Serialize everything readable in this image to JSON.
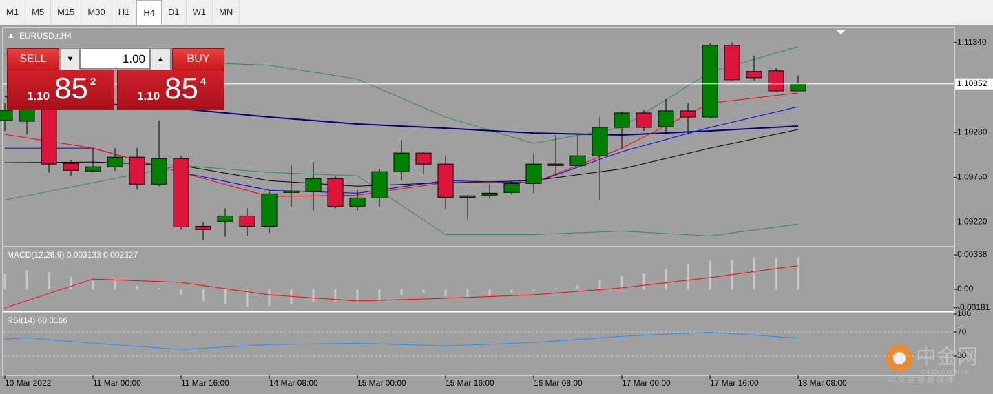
{
  "toolbar": {
    "timeframes": [
      "M1",
      "M5",
      "M15",
      "M30",
      "H1",
      "H4",
      "D1",
      "W1",
      "MN"
    ],
    "selected": "H4"
  },
  "trade_panel": {
    "sell": "SELL",
    "buy": "BUY",
    "volume": "1.00",
    "sell_price": {
      "prefix": "1.10",
      "big": "85",
      "sup": "2"
    },
    "buy_price": {
      "prefix": "1.10",
      "big": "85",
      "sup": "4"
    }
  },
  "watermark": {
    "name": "中金网",
    "domain": "CNGOLD.COM.CN",
    "slogan": "中 文 财 经 新 媒 体"
  },
  "chart_data": [
    {
      "type": "candlestick",
      "title": "EURUSD.r,H4",
      "categories": [
        "10 Mar 2022",
        null,
        null,
        null,
        "11 Mar 00:00",
        null,
        null,
        null,
        "11 Mar 16:00",
        null,
        null,
        null,
        "14 Mar 08:00",
        null,
        null,
        null,
        "15 Mar 00:00",
        null,
        null,
        null,
        "15 Mar 16:00",
        null,
        null,
        null,
        "16 Mar 08:00",
        null,
        null,
        null,
        "17 Mar 00:00",
        null,
        null,
        null,
        "17 Mar 16:00",
        null,
        null,
        null,
        "18 Mar 08:00"
      ],
      "open": [
        1.10419,
        1.10411,
        1.10582,
        1.09914,
        1.09824,
        1.09873,
        1.09987,
        1.09669,
        1.09971,
        1.09172,
        1.09229,
        1.09294,
        1.09172,
        1.09571,
        1.0958,
        1.09734,
        1.09408,
        1.09506,
        1.09816,
        1.10036,
        1.09906,
        1.09514,
        1.09539,
        1.09571,
        1.09677,
        1.09906,
        1.09889,
        1.10003,
        1.10338,
        1.10509,
        1.10346,
        1.10533,
        1.1046,
        1.11307,
        1.10998,
        1.11006,
        1.10769
      ],
      "high": [
        1.10623,
        1.10623,
        1.10623,
        1.09954,
        1.10093,
        1.10093,
        1.10093,
        1.10419,
        1.10003,
        1.09221,
        1.09384,
        1.09384,
        1.09596,
        1.09889,
        1.0993,
        1.09759,
        1.09596,
        1.09849,
        1.10191,
        1.10052,
        1.10003,
        1.09547,
        1.09669,
        1.0971,
        1.10036,
        1.10248,
        1.10248,
        1.1046,
        1.10525,
        1.10541,
        1.10672,
        1.10623,
        1.11332,
        1.1134,
        1.11185,
        1.11038,
        1.10949
      ],
      "low": [
        1.10297,
        1.10256,
        1.09808,
        1.09767,
        1.09808,
        1.09824,
        1.09604,
        1.09645,
        1.09131,
        1.09009,
        1.0905,
        1.09058,
        1.09091,
        1.094,
        1.0936,
        1.09384,
        1.0936,
        1.094,
        1.0971,
        1.09791,
        1.09376,
        1.09254,
        1.09498,
        1.09547,
        1.09563,
        1.09783,
        1.09865,
        1.09482,
        1.10093,
        1.10297,
        1.10256,
        1.10256,
        1.10443,
        1.10892,
        1.10892,
        1.10753,
        1.10769
      ],
      "close": [
        1.10541,
        1.10558,
        1.09906,
        1.09832,
        1.09873,
        1.09987,
        1.09669,
        1.09971,
        1.09164,
        1.09131,
        1.09294,
        1.09172,
        1.09555,
        1.09588,
        1.09734,
        1.09408,
        1.09506,
        1.09816,
        1.10036,
        1.09906,
        1.09514,
        1.09531,
        1.09563,
        1.09677,
        1.09906,
        1.09889,
        1.10003,
        1.10338,
        1.10509,
        1.10338,
        1.10533,
        1.1046,
        1.11307,
        1.109,
        1.10924,
        1.10769,
        1.10852
      ],
      "up_color": "#008000",
      "down_color": "#dc143c",
      "current_price": {
        "value": 1.10852,
        "label": "1.10852"
      },
      "ylim": [
        1.0894,
        1.115
      ],
      "yticks": [
        {
          "value": 1.1134,
          "label": "1.11340"
        },
        {
          "value": 1.1028,
          "label": "1.10280"
        },
        {
          "value": 1.0975,
          "label": "1.09750"
        },
        {
          "value": 1.0922,
          "label": "1.09220"
        }
      ],
      "lines": [
        {
          "color": "#2e8b57",
          "width": 1,
          "x": [
            0,
            4,
            8,
            12,
            16,
            20,
            24,
            28,
            32,
            36
          ],
          "values": [
            1.11193,
            1.11153,
            1.11112,
            1.11071,
            1.10908,
            1.1046,
            1.1015,
            1.10338,
            1.1099,
            1.11291
          ]
        },
        {
          "color": "#2e8b57",
          "width": 1,
          "x": [
            0,
            4,
            8,
            12,
            16,
            20,
            24,
            28,
            32,
            36
          ],
          "values": [
            1.09482,
            1.09686,
            1.09889,
            1.09808,
            1.09767,
            1.09074,
            1.09074,
            1.09115,
            1.09058,
            1.09197
          ]
        },
        {
          "color": "#000080",
          "width": 2,
          "x": [
            0,
            4,
            8,
            12,
            16,
            20,
            24,
            28,
            32,
            36
          ],
          "values": [
            1.10704,
            1.10623,
            1.10558,
            1.1046,
            1.10378,
            1.10329,
            1.10272,
            1.10248,
            1.10297,
            1.10354
          ]
        },
        {
          "color": "#000000",
          "width": 1,
          "x": [
            0,
            4,
            8,
            12,
            16,
            20,
            24,
            28,
            32,
            36
          ],
          "values": [
            1.09922,
            1.0993,
            1.09889,
            1.0971,
            1.09645,
            1.09686,
            1.0971,
            1.09849,
            1.10093,
            1.10313
          ]
        },
        {
          "color": "#0000ff",
          "width": 1,
          "x": [
            0,
            4,
            8,
            12,
            16,
            20,
            24,
            28,
            32,
            36
          ],
          "values": [
            1.10093,
            1.10093,
            1.09808,
            1.09596,
            1.09563,
            1.0971,
            1.09686,
            1.10052,
            1.10338,
            1.10582
          ]
        },
        {
          "color": "#ff0000",
          "width": 1,
          "x": [
            0,
            4,
            8,
            12,
            16,
            20,
            24,
            28,
            32,
            36
          ],
          "values": [
            1.10256,
            1.10093,
            1.09808,
            1.09523,
            1.09539,
            1.09686,
            1.09686,
            1.10093,
            1.10623,
            1.10745
          ]
        }
      ]
    },
    {
      "type": "macd",
      "title": "MACD(12,26,9) 0.003133 0.002327",
      "color": "#c8c8c8",
      "values": [
        0.00149,
        0.00189,
        0.00169,
        0.00122,
        0.00081,
        0.00101,
        0.00034,
        0.00014,
        -0.00054,
        -0.00115,
        -0.00142,
        -0.00169,
        -0.00162,
        -0.00149,
        -0.00122,
        -0.00122,
        -0.00135,
        -0.00101,
        -0.00054,
        -0.00034,
        -0.00068,
        -0.00081,
        -0.00068,
        -0.00034,
        -0.00014,
        0.00014,
        0.00041,
        0.00088,
        0.00135,
        0.00155,
        0.00203,
        0.0025,
        0.00284,
        0.00291,
        0.00305,
        0.0031,
        0.003133
      ],
      "signal": {
        "color": "#ff0000",
        "x": [
          0,
          4,
          8,
          12,
          16,
          20,
          24,
          28,
          32,
          36
        ],
        "values": [
          -0.00183,
          0.00101,
          0.00068,
          -0.00054,
          -0.00115,
          -0.00088,
          -0.00054,
          0.00014,
          0.00115,
          0.002327
        ]
      },
      "ylim": [
        -0.00203,
        0.00406
      ],
      "yticks": [
        {
          "value": 0.00338,
          "label": "0.00338"
        },
        {
          "value": 0,
          "label": "0.00"
        },
        {
          "value": -0.00181,
          "label": "-0.00181"
        }
      ]
    },
    {
      "type": "line",
      "title": "RSI(14) 60.0166",
      "grid": "dotted",
      "series": [
        {
          "color": "#1e90ff",
          "x": [
            0,
            1,
            4,
            8,
            12,
            16,
            20,
            24,
            28,
            32,
            36
          ],
          "values": [
            58.3,
            60.6,
            51.4,
            41.1,
            49.1,
            51.4,
            46.9,
            52.6,
            62.9,
            69.7,
            60.0166
          ]
        }
      ],
      "ylim": [
        0,
        100
      ],
      "yticks": [
        100,
        70,
        30
      ]
    }
  ]
}
